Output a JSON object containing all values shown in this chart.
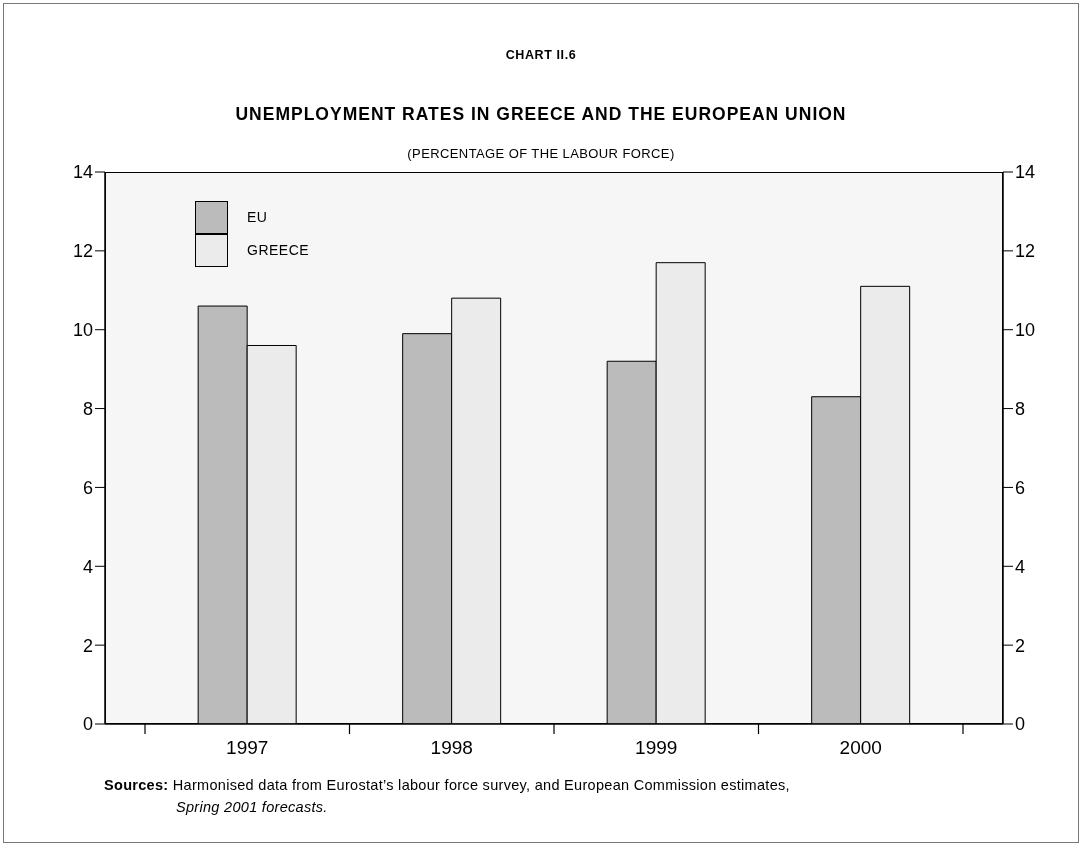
{
  "chart_data": {
    "type": "bar",
    "title": "UNEMPLOYMENT RATES IN GREECE AND THE EUROPEAN UNION",
    "subtitle": "(PERCENTAGE OF THE LABOUR FORCE)",
    "annotations": [
      "CHART II.6",
      "Sources:",
      "Harmonised data from Eurostat’s labour force survey, and European Commission estimates,",
      "Spring 2001 forecasts."
    ],
    "categories": [
      "1997",
      "1998",
      "1999",
      "2000"
    ],
    "series": [
      {
        "name": "EU",
        "color": "#bbbbbb",
        "values": [
          10.6,
          9.9,
          9.2,
          8.3
        ]
      },
      {
        "name": "GREECE",
        "color": "#ebebeb",
        "values": [
          9.6,
          10.8,
          11.7,
          11.1
        ]
      }
    ],
    "ylim": [
      0,
      14
    ],
    "yticks": [
      0,
      2,
      4,
      6,
      8,
      10,
      12,
      14
    ],
    "y2lim": [
      0,
      14
    ],
    "y2ticks": [
      0,
      2,
      4,
      6,
      8,
      10,
      12,
      14
    ],
    "grid": false,
    "legend": "top left"
  }
}
